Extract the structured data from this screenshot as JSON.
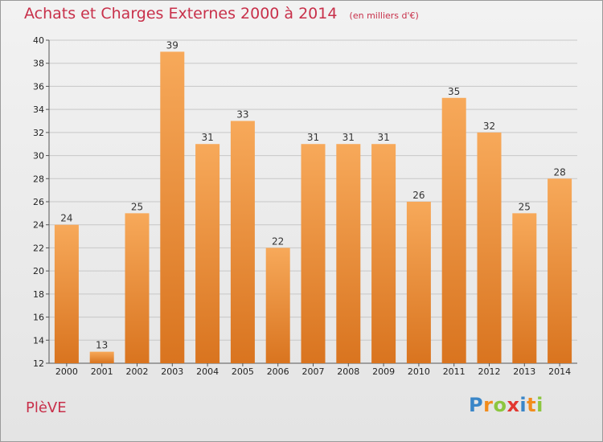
{
  "header": {
    "title": "Achats et Charges Externes 2000 à 2014",
    "unit": "(en milliers d'€)"
  },
  "footer": {
    "commune": "PlèVE",
    "logo_letters": [
      {
        "char": "P",
        "color": "#3a86c8"
      },
      {
        "char": "r",
        "color": "#f28c1c"
      },
      {
        "char": "o",
        "color": "#8cc63f"
      },
      {
        "char": "x",
        "color": "#e2372f"
      },
      {
        "char": "i",
        "color": "#3a86c8"
      },
      {
        "char": "t",
        "color": "#f28c1c"
      },
      {
        "char": "i",
        "color": "#8cc63f"
      }
    ]
  },
  "colors": {
    "title": "#c8304a",
    "bar_light": "#f7a95a",
    "bar_dark": "#d9741f"
  },
  "chart_data": {
    "type": "bar",
    "categories": [
      "2000",
      "2001",
      "2002",
      "2003",
      "2004",
      "2005",
      "2006",
      "2007",
      "2008",
      "2009",
      "2010",
      "2011",
      "2012",
      "2013",
      "2014"
    ],
    "values": [
      24,
      13,
      25,
      39,
      31,
      33,
      22,
      31,
      31,
      31,
      26,
      35,
      32,
      25,
      28
    ],
    "ylim": [
      12,
      40
    ],
    "yticks": [
      12,
      14,
      16,
      18,
      20,
      22,
      24,
      26,
      28,
      30,
      32,
      34,
      36,
      38,
      40
    ],
    "grid": true,
    "data_labels": true
  }
}
